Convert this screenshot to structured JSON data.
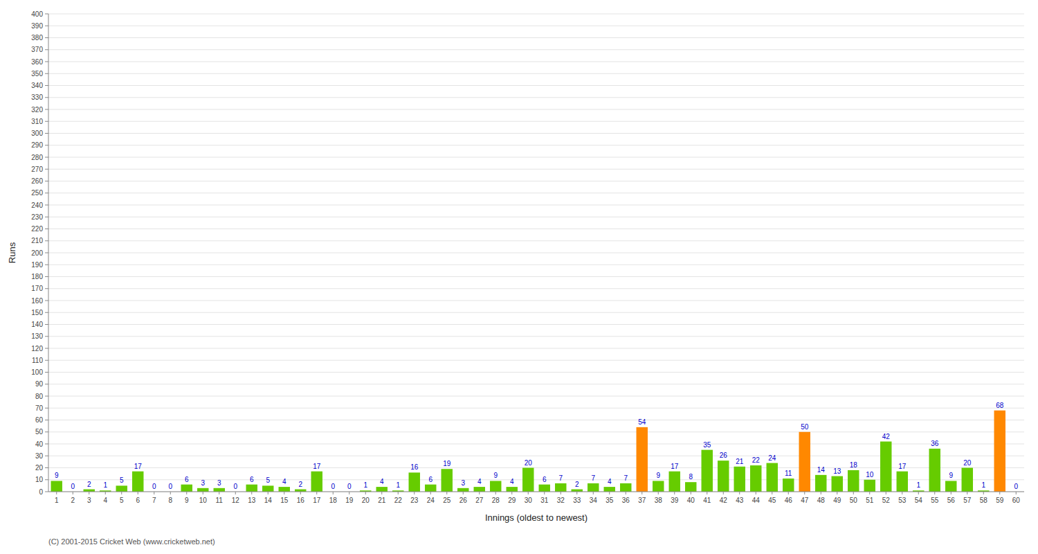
{
  "chart_data": {
    "type": "bar",
    "categories": [
      "1",
      "2",
      "3",
      "4",
      "5",
      "6",
      "7",
      "8",
      "9",
      "10",
      "11",
      "12",
      "13",
      "14",
      "15",
      "16",
      "17",
      "18",
      "19",
      "20",
      "21",
      "22",
      "23",
      "24",
      "25",
      "26",
      "27",
      "28",
      "29",
      "30",
      "31",
      "32",
      "33",
      "34",
      "35",
      "36",
      "37",
      "38",
      "39",
      "40",
      "41",
      "42",
      "43",
      "44",
      "45",
      "46",
      "47",
      "48",
      "49",
      "50",
      "51",
      "52",
      "53",
      "54",
      "55",
      "56",
      "57",
      "58",
      "59",
      "60"
    ],
    "values": [
      9,
      0,
      2,
      1,
      5,
      17,
      0,
      0,
      6,
      3,
      3,
      0,
      6,
      5,
      4,
      2,
      17,
      0,
      0,
      1,
      4,
      1,
      16,
      6,
      19,
      3,
      4,
      9,
      4,
      20,
      6,
      7,
      2,
      7,
      4,
      7,
      54,
      9,
      17,
      8,
      35,
      26,
      21,
      22,
      24,
      11,
      50,
      14,
      13,
      18,
      10,
      42,
      17,
      1,
      36,
      9,
      20,
      1,
      68,
      0
    ],
    "colors": [
      "#66cc00",
      "#66cc00",
      "#66cc00",
      "#66cc00",
      "#66cc00",
      "#66cc00",
      "#66cc00",
      "#66cc00",
      "#66cc00",
      "#66cc00",
      "#66cc00",
      "#66cc00",
      "#66cc00",
      "#66cc00",
      "#66cc00",
      "#66cc00",
      "#66cc00",
      "#66cc00",
      "#66cc00",
      "#66cc00",
      "#66cc00",
      "#66cc00",
      "#66cc00",
      "#66cc00",
      "#66cc00",
      "#66cc00",
      "#66cc00",
      "#66cc00",
      "#66cc00",
      "#66cc00",
      "#66cc00",
      "#66cc00",
      "#66cc00",
      "#66cc00",
      "#66cc00",
      "#66cc00",
      "#ff8800",
      "#66cc00",
      "#66cc00",
      "#66cc00",
      "#66cc00",
      "#66cc00",
      "#66cc00",
      "#66cc00",
      "#66cc00",
      "#66cc00",
      "#ff8800",
      "#66cc00",
      "#66cc00",
      "#66cc00",
      "#66cc00",
      "#66cc00",
      "#66cc00",
      "#66cc00",
      "#66cc00",
      "#66cc00",
      "#66cc00",
      "#66cc00",
      "#ff8800",
      "#66cc00"
    ],
    "x_label": "Innings (oldest to newest)",
    "y_label": "Runs",
    "ylim": [
      0,
      400
    ],
    "yticks": [
      0,
      10,
      20,
      30,
      40,
      50,
      60,
      70,
      80,
      90,
      100,
      110,
      120,
      130,
      140,
      150,
      160,
      170,
      180,
      190,
      200,
      210,
      220,
      230,
      240,
      250,
      260,
      270,
      280,
      290,
      300,
      310,
      320,
      330,
      340,
      350,
      360,
      370,
      380,
      390,
      400
    ],
    "grid": true,
    "data_labels": true,
    "annotations": [
      "(C) 2001-2015 Cricket Web (www.cricketweb.net)"
    ]
  }
}
